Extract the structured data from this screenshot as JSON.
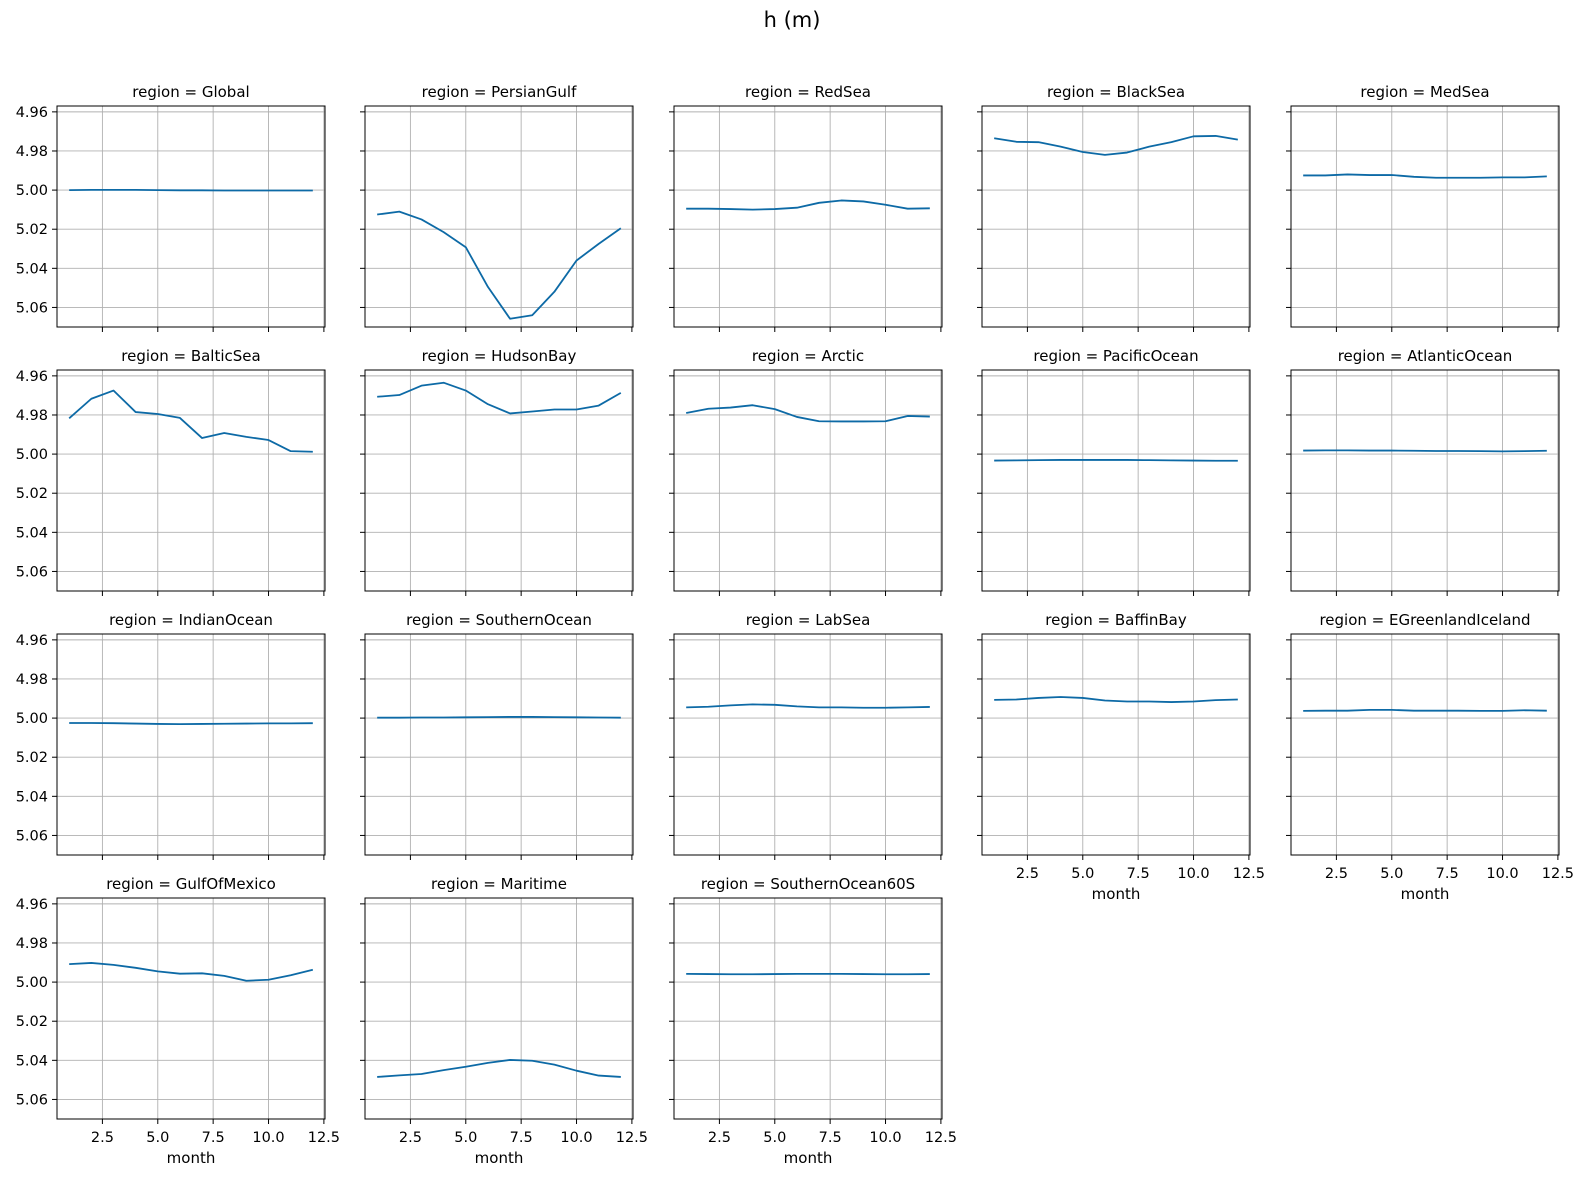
{
  "figure_title": "h (m)",
  "colors": {
    "line": "#0d6aa6",
    "grid": "#b0b0b0",
    "axes": "#000000"
  },
  "chart_data": {
    "type": "line",
    "layout": "facet-grid",
    "columns": 5,
    "facet_label_prefix": "region = ",
    "xlabel": "month",
    "ylabel": "",
    "xlim": [
      0.45,
      12.55
    ],
    "ylim": [
      5.07,
      4.957
    ],
    "y_inverted": true,
    "grid": true,
    "xticks": [
      2.5,
      5.0,
      7.5,
      10.0,
      12.5
    ],
    "xtick_labels": [
      "2.5",
      "5.0",
      "7.5",
      "10.0",
      "12.5"
    ],
    "yticks": [
      4.96,
      4.98,
      5.0,
      5.02,
      5.04,
      5.06
    ],
    "ytick_labels": [
      "4.96",
      "4.98",
      "5.00",
      "5.02",
      "5.04",
      "5.06"
    ],
    "x": [
      1,
      2,
      3,
      4,
      5,
      6,
      7,
      8,
      9,
      10,
      11,
      12
    ],
    "facets": [
      {
        "region": "Global",
        "values": [
          5.0,
          4.9999,
          4.9999,
          4.9999,
          5.0,
          5.0001,
          5.0001,
          5.0002,
          5.0002,
          5.0002,
          5.0002,
          5.0002
        ]
      },
      {
        "region": "PersianGulf",
        "values": [
          5.0125,
          5.011,
          5.015,
          5.0215,
          5.0292,
          5.0495,
          5.0658,
          5.064,
          5.052,
          5.036,
          5.0275,
          5.0195
        ]
      },
      {
        "region": "RedSea",
        "values": [
          5.0095,
          5.0095,
          5.0097,
          5.01,
          5.0097,
          5.009,
          5.0065,
          5.0053,
          5.0058,
          5.0075,
          5.0095,
          5.0093
        ]
      },
      {
        "region": "BlackSea",
        "values": [
          4.9735,
          4.9753,
          4.9755,
          4.9778,
          4.9805,
          4.982,
          4.9808,
          4.9778,
          4.9755,
          4.9725,
          4.9723,
          4.9742
        ]
      },
      {
        "region": "MedSea",
        "values": [
          4.9925,
          4.9925,
          4.992,
          4.9923,
          4.9923,
          4.9932,
          4.9937,
          4.9937,
          4.9937,
          4.9935,
          4.9935,
          4.993
        ]
      },
      {
        "region": "BalticSea",
        "values": [
          4.9817,
          4.9717,
          4.9675,
          4.9785,
          4.9795,
          4.9815,
          4.9918,
          4.9892,
          4.9912,
          4.9928,
          4.9985,
          4.9988
        ]
      },
      {
        "region": "HudsonBay",
        "values": [
          4.9707,
          4.9698,
          4.965,
          4.9635,
          4.9675,
          4.9745,
          4.9792,
          4.9782,
          4.9772,
          4.9772,
          4.9752,
          4.9687
        ]
      },
      {
        "region": "Arctic",
        "values": [
          4.979,
          4.9768,
          4.9762,
          4.975,
          4.977,
          4.981,
          4.9832,
          4.9833,
          4.9833,
          4.9832,
          4.9805,
          4.9808
        ]
      },
      {
        "region": "PacificOcean",
        "values": [
          5.0033,
          5.0032,
          5.0031,
          5.003,
          5.003,
          5.003,
          5.003,
          5.0031,
          5.0032,
          5.0033,
          5.0034,
          5.0034
        ]
      },
      {
        "region": "AtlanticOcean",
        "values": [
          4.9982,
          4.9981,
          4.9981,
          4.9982,
          4.9982,
          4.9983,
          4.9984,
          4.9984,
          4.9985,
          4.9986,
          4.9985,
          4.9983
        ]
      },
      {
        "region": "IndianOcean",
        "values": [
          5.0025,
          5.0025,
          5.0026,
          5.0028,
          5.003,
          5.0031,
          5.003,
          5.0029,
          5.0028,
          5.0027,
          5.0027,
          5.0026
        ]
      },
      {
        "region": "SouthernOcean",
        "values": [
          4.9998,
          4.9998,
          4.9997,
          4.9997,
          4.9996,
          4.9995,
          4.9994,
          4.9994,
          4.9995,
          4.9996,
          4.9997,
          4.9998
        ]
      },
      {
        "region": "LabSea",
        "values": [
          4.9945,
          4.9942,
          4.9935,
          4.993,
          4.9932,
          4.994,
          4.9945,
          4.9945,
          4.9947,
          4.9947,
          4.9945,
          4.9943
        ]
      },
      {
        "region": "BaffinBay",
        "values": [
          4.9907,
          4.9905,
          4.9897,
          4.9892,
          4.9897,
          4.991,
          4.9915,
          4.9915,
          4.9918,
          4.9915,
          4.9908,
          4.9905
        ]
      },
      {
        "region": "EGreenlandIceland",
        "values": [
          4.9963,
          4.9962,
          4.9962,
          4.9958,
          4.9958,
          4.9962,
          4.9962,
          4.9962,
          4.9963,
          4.9963,
          4.996,
          4.9962
        ]
      },
      {
        "region": "GulfOfMexico",
        "values": [
          4.9908,
          4.9902,
          4.9912,
          4.9927,
          4.9945,
          4.9957,
          4.9955,
          4.9968,
          4.9993,
          4.9988,
          4.9965,
          4.9937
        ]
      },
      {
        "region": "Maritime",
        "values": [
          5.0485,
          5.0477,
          5.047,
          5.045,
          5.0433,
          5.0413,
          5.0398,
          5.0402,
          5.0422,
          5.0453,
          5.0478,
          5.0485
        ]
      },
      {
        "region": "SouthernOcean60S",
        "values": [
          4.9958,
          4.9959,
          4.996,
          4.996,
          4.9959,
          4.9958,
          4.9958,
          4.9958,
          4.9959,
          4.996,
          4.996,
          4.9959
        ]
      }
    ]
  }
}
